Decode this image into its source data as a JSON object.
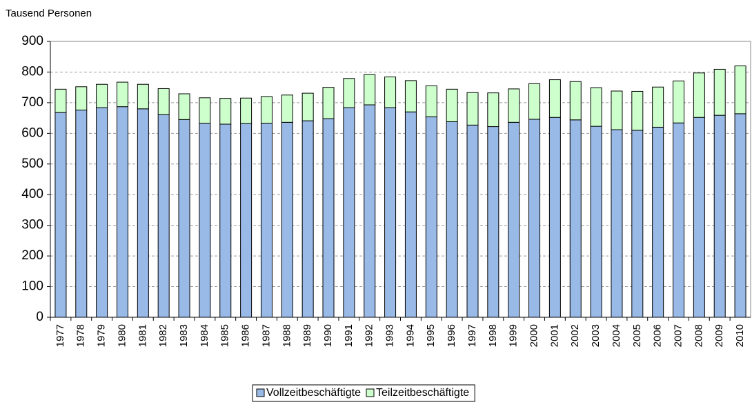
{
  "chart_data": {
    "type": "stacked_bar",
    "y_label": "Tausend Personen",
    "categories": [
      "1977",
      "1978",
      "1979",
      "1980",
      "1981",
      "1982",
      "1983",
      "1984",
      "1985",
      "1986",
      "1987",
      "1988",
      "1989",
      "1990",
      "1991",
      "1992",
      "1993",
      "1994",
      "1995",
      "1996",
      "1997",
      "1998",
      "1999",
      "2000",
      "2001",
      "2002",
      "2003",
      "2004",
      "2005",
      "2006",
      "2007",
      "2008",
      "2009",
      "2010"
    ],
    "series": [
      {
        "name": "Vollzeitbeschäftigte",
        "color": "#99b9e6",
        "values": [
          668,
          676,
          684,
          687,
          680,
          661,
          645,
          633,
          630,
          632,
          633,
          636,
          641,
          648,
          684,
          693,
          684,
          670,
          654,
          638,
          627,
          622,
          636,
          646,
          652,
          644,
          623,
          612,
          610,
          620,
          634,
          652,
          659,
          664
        ]
      },
      {
        "name": "Teilzeitbeschäftigte",
        "color": "#ccffcc",
        "values": [
          76,
          76,
          76,
          80,
          80,
          85,
          84,
          83,
          84,
          83,
          87,
          89,
          90,
          102,
          95,
          99,
          100,
          102,
          101,
          106,
          106,
          110,
          109,
          116,
          123,
          125,
          126,
          126,
          127,
          131,
          137,
          145,
          150,
          156
        ]
      }
    ],
    "ylim": [
      0,
      900
    ],
    "yticks": [
      0,
      100,
      200,
      300,
      400,
      500,
      600,
      700,
      800,
      900
    ],
    "grid": true
  }
}
